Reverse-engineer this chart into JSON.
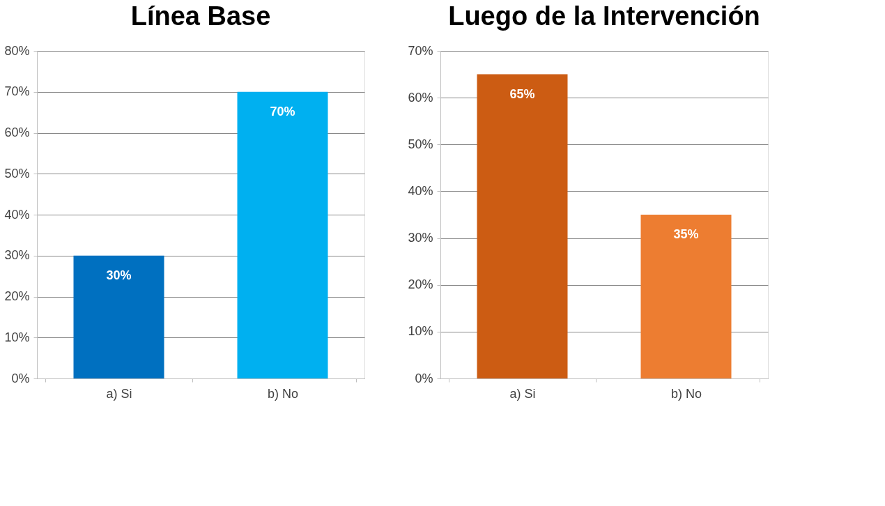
{
  "chart_data": [
    {
      "type": "bar",
      "title": "Línea Base",
      "categories": [
        "a) Si",
        "b) No"
      ],
      "values": [
        30,
        70
      ],
      "colors": [
        "#0070c0",
        "#00b0f0"
      ],
      "value_labels": [
        "30%",
        "70%"
      ],
      "ylim": [
        0,
        80
      ],
      "yticks": [
        {
          "value": 0,
          "label": "0%"
        },
        {
          "value": 10,
          "label": "10%"
        },
        {
          "value": 20,
          "label": "20%"
        },
        {
          "value": 30,
          "label": "30%"
        },
        {
          "value": 40,
          "label": "40%"
        },
        {
          "value": 50,
          "label": "50%"
        },
        {
          "value": 60,
          "label": "60%"
        },
        {
          "value": 70,
          "label": "70%"
        },
        {
          "value": 80,
          "label": "80%"
        }
      ],
      "grid": "y",
      "legend": false
    },
    {
      "type": "bar",
      "title": "Luego de la Intervención",
      "categories": [
        "a) Si",
        "b) No"
      ],
      "values": [
        65,
        35
      ],
      "colors": [
        "#cc5c13",
        "#ed7d31"
      ],
      "value_labels": [
        "65%",
        "35%"
      ],
      "ylim": [
        0,
        70
      ],
      "yticks": [
        {
          "value": 0,
          "label": "0%"
        },
        {
          "value": 10,
          "label": "10%"
        },
        {
          "value": 20,
          "label": "20%"
        },
        {
          "value": 30,
          "label": "30%"
        },
        {
          "value": 40,
          "label": "40%"
        },
        {
          "value": 50,
          "label": "50%"
        },
        {
          "value": 60,
          "label": "60%"
        },
        {
          "value": 70,
          "label": "70%"
        }
      ],
      "grid": "y",
      "legend": false
    }
  ]
}
